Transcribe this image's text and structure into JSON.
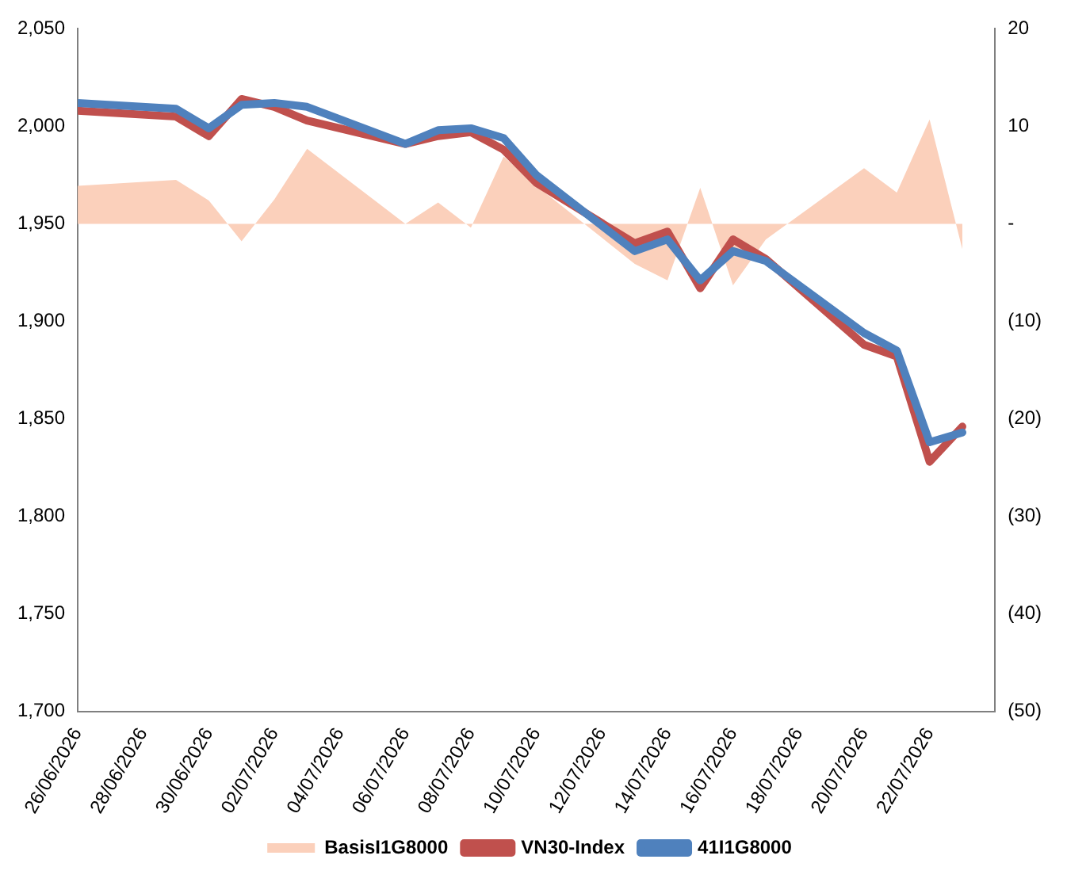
{
  "chart_data": {
    "type": "line",
    "x": [
      "2026-06-26",
      "2026-06-29",
      "2026-06-30",
      "2026-07-01",
      "2026-07-02",
      "2026-07-03",
      "2026-07-06",
      "2026-07-07",
      "2026-07-08",
      "2026-07-09",
      "2026-07-10",
      "2026-07-13",
      "2026-07-14",
      "2026-07-15",
      "2026-07-16",
      "2026-07-17",
      "2026-07-20",
      "2026-07-21",
      "2026-07-22",
      "2026-07-23"
    ],
    "series": [
      {
        "name": "BasisI1G8000",
        "type": "area",
        "axis": "y2",
        "color": "#fbd0bb",
        "values": [
          3.9,
          4.5,
          2.4,
          -1.8,
          2.5,
          7.7,
          0,
          2.2,
          -0.4,
          6.9,
          3.9,
          -4.1,
          -5.8,
          3.7,
          -6.3,
          -1.6,
          5.7,
          3.2,
          10.7,
          -2.6
        ]
      },
      {
        "name": "VN30-Index",
        "color": "#c0504d",
        "values": [
          2008,
          2005,
          1995,
          2014,
          2010,
          2003,
          1991,
          1995,
          1997,
          1988,
          1971,
          1940,
          1946,
          1917,
          1942,
          1932,
          1888,
          1882,
          1828,
          1846
        ]
      },
      {
        "name": "41I1G8000",
        "color": "#4f81bd",
        "values": [
          2012,
          2009,
          1999,
          2011,
          2012,
          2010,
          1991,
          1998,
          1999,
          1994,
          1975,
          1936,
          1942,
          1921,
          1936,
          1931,
          1894,
          1885,
          1838,
          1843
        ]
      }
    ],
    "xlim": [
      "2026-06-26",
      "2026-07-24"
    ],
    "xticks": [
      {
        "value": "2026-06-26",
        "label": "26/06/2026"
      },
      {
        "value": "2026-06-28",
        "label": "28/06/2026"
      },
      {
        "value": "2026-06-30",
        "label": "30/06/2026"
      },
      {
        "value": "2026-07-02",
        "label": "02/07/2026"
      },
      {
        "value": "2026-07-04",
        "label": "04/07/2026"
      },
      {
        "value": "2026-07-06",
        "label": "06/07/2026"
      },
      {
        "value": "2026-07-08",
        "label": "08/07/2026"
      },
      {
        "value": "2026-07-10",
        "label": "10/07/2026"
      },
      {
        "value": "2026-07-12",
        "label": "12/07/2026"
      },
      {
        "value": "2026-07-14",
        "label": "14/07/2026"
      },
      {
        "value": "2026-07-16",
        "label": "16/07/2026"
      },
      {
        "value": "2026-07-18",
        "label": "18/07/2026"
      },
      {
        "value": "2026-07-20",
        "label": "20/07/2026"
      },
      {
        "value": "2026-07-22",
        "label": "22/07/2026"
      }
    ],
    "ylim": [
      1700,
      2050
    ],
    "yticks": [
      {
        "value": 1700,
        "label": "1,700"
      },
      {
        "value": 1750,
        "label": "1,750"
      },
      {
        "value": 1800,
        "label": "1,800"
      },
      {
        "value": 1850,
        "label": "1,850"
      },
      {
        "value": 1900,
        "label": "1,900"
      },
      {
        "value": 1950,
        "label": "1,950"
      },
      {
        "value": 2000,
        "label": "2,000"
      },
      {
        "value": 2050,
        "label": "2,050"
      }
    ],
    "y2lim": [
      -50,
      20
    ],
    "y2ticks": [
      {
        "value": -50,
        "label": "(50)"
      },
      {
        "value": -40,
        "label": "(40)"
      },
      {
        "value": -30,
        "label": "(30)"
      },
      {
        "value": -20,
        "label": "(20)"
      },
      {
        "value": -10,
        "label": "(10)"
      },
      {
        "value": 0,
        "label": "-"
      },
      10,
      20
    ],
    "grid": false,
    "legend": "bottom"
  }
}
